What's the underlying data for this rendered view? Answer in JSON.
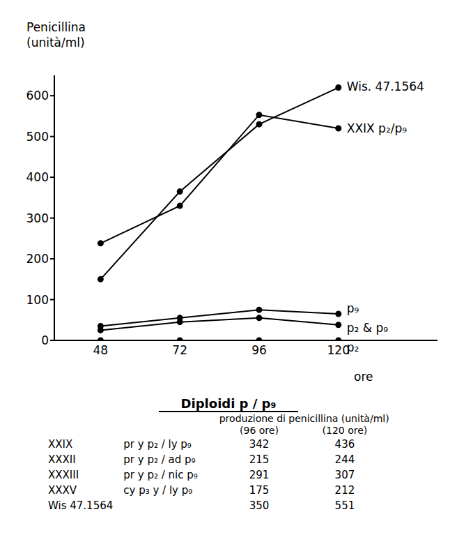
{
  "chart_data": {
    "type": "line",
    "y_label": "Penicillina\n(unità/ml)",
    "x_label": "ore",
    "x": [
      48,
      72,
      96,
      120
    ],
    "xlim": [
      34,
      150
    ],
    "xticks": [
      48,
      72,
      96,
      120
    ],
    "ylim": [
      0,
      650
    ],
    "yticks": [
      0,
      100,
      200,
      300,
      400,
      500,
      600
    ],
    "grid": false,
    "marker": "circle",
    "series": [
      {
        "name": "Wis. 47.1564",
        "color": "#000000",
        "values": [
          150,
          365,
          530,
          620
        ]
      },
      {
        "name": "XXIX p₂/p₉",
        "color": "#000000",
        "values": [
          238,
          330,
          553,
          520
        ]
      },
      {
        "name": "p₉",
        "color": "#000000",
        "values": [
          35,
          55,
          75,
          65
        ]
      },
      {
        "name": "p₂ & p₉",
        "color": "#000000",
        "values": [
          25,
          45,
          55,
          38
        ]
      },
      {
        "name": "p₂",
        "color": "#000000",
        "values": [
          0,
          0,
          0,
          0
        ]
      }
    ]
  },
  "table": {
    "title": "Diploidi p / p₉",
    "subtitle": "produzione di penicillina (unità/ml)",
    "columns": [
      "(96 ore)",
      "(120 ore)"
    ],
    "rows": [
      [
        "XXIX",
        "pr y p₂ / ly p₉",
        342,
        436
      ],
      [
        "XXXII",
        "pr y p₂ / ad p₉",
        215,
        244
      ],
      [
        "XXXIII",
        "pr y p₂ / nic p₉",
        291,
        307
      ],
      [
        "XXXV",
        "cy p₃ y / ly p₉",
        175,
        212
      ],
      [
        "Wis 47.1564",
        "",
        350,
        551
      ]
    ]
  }
}
